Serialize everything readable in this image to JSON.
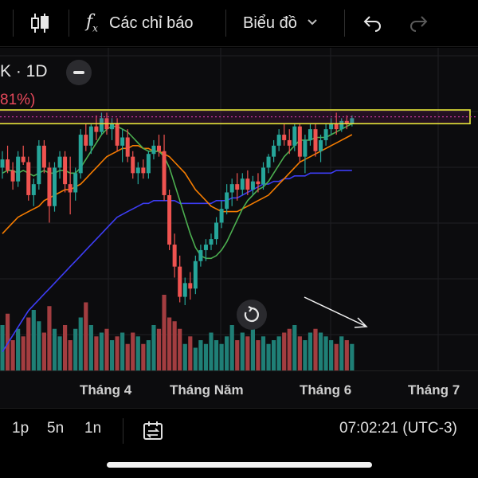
{
  "toolbar": {
    "indicators_label": "Các chỉ báo",
    "chart_type_label": "Biểu đồ",
    "icons": [
      "candles-icon",
      "fx-icon",
      "chevron-down-icon",
      "undo-icon",
      "redo-icon"
    ]
  },
  "legend": {
    "symbol": "K · 1D",
    "change_pct": "81%)"
  },
  "time_axis": {
    "labels": [
      "Tháng 4",
      "Tháng Năm",
      "Tháng 6",
      "Tháng 7"
    ]
  },
  "bottom_bar": {
    "timeframes": [
      "1p",
      "5n",
      "1n"
    ],
    "clock": "07:02:21 (UTC-3)"
  },
  "colors": {
    "up": "#26a69a",
    "down": "#ef5350",
    "ma_short": "#4caf50",
    "ma_mid": "#f57c00",
    "ma_long": "#3d3df5",
    "zone_border": "#e8e83a",
    "zone_line": "#c0389a"
  },
  "chart_data": {
    "type": "candlestick",
    "x_tick_labels": [
      "Tháng 4",
      "Tháng Năm",
      "Tháng 6",
      "Tháng 7"
    ],
    "candles": [
      {
        "o": 42,
        "h": 48,
        "l": 38,
        "c": 45
      },
      {
        "o": 45,
        "h": 50,
        "l": 40,
        "c": 41
      },
      {
        "o": 41,
        "h": 44,
        "l": 34,
        "c": 37
      },
      {
        "o": 37,
        "h": 48,
        "l": 35,
        "c": 46
      },
      {
        "o": 46,
        "h": 50,
        "l": 43,
        "c": 44
      },
      {
        "o": 44,
        "h": 46,
        "l": 30,
        "c": 32
      },
      {
        "o": 32,
        "h": 38,
        "l": 28,
        "c": 36
      },
      {
        "o": 36,
        "h": 52,
        "l": 34,
        "c": 50
      },
      {
        "o": 50,
        "h": 52,
        "l": 40,
        "c": 42
      },
      {
        "o": 42,
        "h": 44,
        "l": 22,
        "c": 28
      },
      {
        "o": 28,
        "h": 44,
        "l": 26,
        "c": 42
      },
      {
        "o": 42,
        "h": 48,
        "l": 38,
        "c": 46
      },
      {
        "o": 46,
        "h": 48,
        "l": 33,
        "c": 36
      },
      {
        "o": 36,
        "h": 46,
        "l": 25,
        "c": 33
      },
      {
        "o": 33,
        "h": 42,
        "l": 30,
        "c": 40
      },
      {
        "o": 40,
        "h": 56,
        "l": 38,
        "c": 54
      },
      {
        "o": 54,
        "h": 58,
        "l": 48,
        "c": 50
      },
      {
        "o": 50,
        "h": 58,
        "l": 47,
        "c": 57
      },
      {
        "o": 57,
        "h": 61,
        "l": 52,
        "c": 55
      },
      {
        "o": 55,
        "h": 62,
        "l": 54,
        "c": 60
      },
      {
        "o": 60,
        "h": 62,
        "l": 54,
        "c": 56
      },
      {
        "o": 56,
        "h": 60,
        "l": 52,
        "c": 58
      },
      {
        "o": 58,
        "h": 60,
        "l": 48,
        "c": 50
      },
      {
        "o": 50,
        "h": 56,
        "l": 44,
        "c": 53
      },
      {
        "o": 53,
        "h": 56,
        "l": 44,
        "c": 46
      },
      {
        "o": 46,
        "h": 48,
        "l": 38,
        "c": 40
      },
      {
        "o": 40,
        "h": 44,
        "l": 36,
        "c": 42
      },
      {
        "o": 42,
        "h": 45,
        "l": 38,
        "c": 40
      },
      {
        "o": 40,
        "h": 48,
        "l": 38,
        "c": 47
      },
      {
        "o": 47,
        "h": 52,
        "l": 45,
        "c": 50
      },
      {
        "o": 50,
        "h": 54,
        "l": 46,
        "c": 48
      },
      {
        "o": 48,
        "h": 54,
        "l": 30,
        "c": 32
      },
      {
        "o": 32,
        "h": 34,
        "l": 12,
        "c": 14
      },
      {
        "o": 14,
        "h": 18,
        "l": 2,
        "c": 6
      },
      {
        "o": 6,
        "h": 10,
        "l": -7,
        "c": -5
      },
      {
        "o": -5,
        "h": 2,
        "l": -8,
        "c": 0
      },
      {
        "o": 0,
        "h": 4,
        "l": -6,
        "c": -2
      },
      {
        "o": -2,
        "h": 10,
        "l": -4,
        "c": 8
      },
      {
        "o": 8,
        "h": 14,
        "l": 6,
        "c": 12
      },
      {
        "o": 12,
        "h": 16,
        "l": 8,
        "c": 14
      },
      {
        "o": 14,
        "h": 18,
        "l": 12,
        "c": 16
      },
      {
        "o": 16,
        "h": 24,
        "l": 14,
        "c": 22
      },
      {
        "o": 22,
        "h": 30,
        "l": 20,
        "c": 27
      },
      {
        "o": 27,
        "h": 36,
        "l": 25,
        "c": 33
      },
      {
        "o": 33,
        "h": 38,
        "l": 28,
        "c": 36
      },
      {
        "o": 36,
        "h": 40,
        "l": 30,
        "c": 34
      },
      {
        "o": 34,
        "h": 40,
        "l": 32,
        "c": 38
      },
      {
        "o": 38,
        "h": 41,
        "l": 32,
        "c": 34
      },
      {
        "o": 34,
        "h": 39,
        "l": 32,
        "c": 37
      },
      {
        "o": 37,
        "h": 40,
        "l": 33,
        "c": 36
      },
      {
        "o": 36,
        "h": 44,
        "l": 34,
        "c": 42
      },
      {
        "o": 42,
        "h": 47,
        "l": 40,
        "c": 46
      },
      {
        "o": 46,
        "h": 52,
        "l": 44,
        "c": 50
      },
      {
        "o": 50,
        "h": 56,
        "l": 48,
        "c": 54
      },
      {
        "o": 54,
        "h": 58,
        "l": 50,
        "c": 52
      },
      {
        "o": 52,
        "h": 56,
        "l": 47,
        "c": 50
      },
      {
        "o": 50,
        "h": 58,
        "l": 48,
        "c": 57
      },
      {
        "o": 57,
        "h": 58,
        "l": 44,
        "c": 46
      },
      {
        "o": 46,
        "h": 54,
        "l": 40,
        "c": 52
      },
      {
        "o": 52,
        "h": 58,
        "l": 50,
        "c": 56
      },
      {
        "o": 56,
        "h": 58,
        "l": 46,
        "c": 48
      },
      {
        "o": 48,
        "h": 54,
        "l": 44,
        "c": 52
      },
      {
        "o": 52,
        "h": 58,
        "l": 50,
        "c": 56
      },
      {
        "o": 56,
        "h": 60,
        "l": 54,
        "c": 58
      },
      {
        "o": 58,
        "h": 62,
        "l": 54,
        "c": 56
      },
      {
        "o": 56,
        "h": 60,
        "l": 55,
        "c": 59
      },
      {
        "o": 59,
        "h": 61,
        "l": 56,
        "c": 58
      },
      {
        "o": 58,
        "h": 61,
        "l": 57,
        "c": 60
      }
    ],
    "volume": [
      60,
      75,
      40,
      55,
      45,
      70,
      80,
      65,
      50,
      85,
      55,
      45,
      60,
      40,
      55,
      70,
      90,
      60,
      45,
      50,
      55,
      40,
      45,
      50,
      35,
      50,
      45,
      35,
      40,
      60,
      55,
      100,
      70,
      65,
      55,
      35,
      45,
      30,
      40,
      35,
      50,
      40,
      35,
      45,
      60,
      40,
      50,
      45,
      55,
      40,
      45,
      35,
      40,
      45,
      50,
      55,
      60,
      45,
      40,
      50,
      55,
      50,
      45,
      40,
      35,
      45,
      40,
      35
    ],
    "ma_short": [
      40,
      41,
      41,
      40,
      41,
      40,
      39,
      40,
      41,
      40,
      40,
      41,
      41,
      40,
      40,
      42,
      45,
      48,
      51,
      54,
      56,
      57,
      57,
      56,
      55,
      53,
      51,
      49,
      48,
      48,
      48,
      46,
      42,
      36,
      30,
      24,
      18,
      13,
      10,
      9,
      9,
      10,
      12,
      15,
      19,
      23,
      27,
      30,
      32,
      34,
      35,
      37,
      40,
      43,
      46,
      48,
      50,
      52,
      52,
      52,
      53,
      53,
      53,
      54,
      55,
      56,
      57,
      58
    ],
    "ma_mid": [
      18,
      20,
      22,
      24,
      25,
      26,
      27,
      28,
      30,
      31,
      32,
      33,
      34,
      34,
      35,
      36,
      38,
      40,
      42,
      44,
      46,
      47,
      48,
      49,
      49,
      50,
      50,
      49,
      49,
      48,
      48,
      47,
      46,
      44,
      42,
      40,
      37,
      34,
      32,
      30,
      28,
      27,
      26,
      26,
      26,
      26,
      27,
      28,
      29,
      30,
      31,
      32,
      34,
      36,
      38,
      40,
      42,
      44,
      45,
      46,
      47,
      48,
      49,
      50,
      51,
      52,
      53,
      54
    ],
    "ma_long": [
      -25,
      -22,
      -19,
      -16,
      -13,
      -10,
      -8,
      -6,
      -4,
      -2,
      0,
      2,
      4,
      6,
      8,
      10,
      12,
      14,
      16,
      18,
      20,
      22,
      24,
      25,
      26,
      27,
      28,
      29,
      29,
      30,
      30,
      30,
      30,
      30,
      29,
      29,
      29,
      29,
      29,
      29,
      29,
      30,
      30,
      30,
      31,
      31,
      32,
      33,
      34,
      35,
      36,
      36,
      37,
      37,
      38,
      38,
      39,
      39,
      39,
      40,
      40,
      40,
      40,
      40,
      41,
      41,
      41,
      41
    ],
    "resistance_zone": [
      58,
      63
    ]
  }
}
